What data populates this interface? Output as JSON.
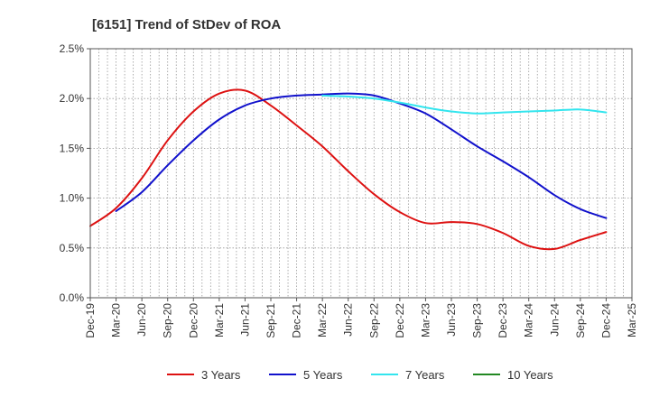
{
  "chart_data": {
    "type": "line",
    "title": "[6151]  Trend of StDev of ROA",
    "xlabel": "",
    "ylabel": "",
    "x_tick_labels": [
      "Dec-19",
      "Mar-20",
      "Jun-20",
      "Sep-20",
      "Dec-20",
      "Mar-21",
      "Jun-21",
      "Sep-21",
      "Dec-21",
      "Mar-22",
      "Jun-22",
      "Sep-22",
      "Dec-22",
      "Mar-23",
      "Jun-23",
      "Sep-23",
      "Dec-23",
      "Mar-24",
      "Jun-24",
      "Sep-24",
      "Dec-24",
      "Mar-25"
    ],
    "y_tick_labels": [
      "0.0%",
      "0.5%",
      "1.0%",
      "1.5%",
      "2.0%",
      "2.5%"
    ],
    "y_ticks": [
      0,
      0.5,
      1.0,
      1.5,
      2.0,
      2.5
    ],
    "ylim": [
      0,
      2.5
    ],
    "grid": true,
    "legend_position": "bottom",
    "series": [
      {
        "name": "3 Years",
        "color": "#dd1111",
        "x": [
          "Dec-19",
          "Mar-20",
          "Jun-20",
          "Sep-20",
          "Dec-20",
          "Mar-21",
          "Jun-21",
          "Sep-21",
          "Dec-21",
          "Mar-22",
          "Jun-22",
          "Sep-22",
          "Dec-22",
          "Mar-23",
          "Jun-23",
          "Sep-23",
          "Dec-23",
          "Mar-24",
          "Jun-24",
          "Sep-24",
          "Dec-24"
        ],
        "values": [
          0.72,
          0.9,
          1.2,
          1.58,
          1.87,
          2.05,
          2.08,
          1.93,
          1.73,
          1.52,
          1.27,
          1.04,
          0.86,
          0.75,
          0.76,
          0.74,
          0.65,
          0.52,
          0.49,
          0.58,
          0.66
        ]
      },
      {
        "name": "5 Years",
        "color": "#1111cc",
        "x": [
          "Mar-20",
          "Jun-20",
          "Sep-20",
          "Dec-20",
          "Mar-21",
          "Jun-21",
          "Sep-21",
          "Dec-21",
          "Mar-22",
          "Jun-22",
          "Sep-22",
          "Dec-22",
          "Mar-23",
          "Jun-23",
          "Sep-23",
          "Dec-23",
          "Mar-24",
          "Jun-24",
          "Sep-24",
          "Dec-24"
        ],
        "values": [
          0.87,
          1.06,
          1.33,
          1.58,
          1.79,
          1.93,
          2.0,
          2.03,
          2.04,
          2.05,
          2.03,
          1.95,
          1.85,
          1.69,
          1.52,
          1.37,
          1.21,
          1.03,
          0.89,
          0.8
        ]
      },
      {
        "name": "7 Years",
        "color": "#33e5ee",
        "x": [
          "Mar-22",
          "Jun-22",
          "Sep-22",
          "Dec-22",
          "Mar-23",
          "Jun-23",
          "Sep-23",
          "Dec-23",
          "Mar-24",
          "Jun-24",
          "Sep-24",
          "Dec-24"
        ],
        "values": [
          2.03,
          2.02,
          2.0,
          1.96,
          1.91,
          1.87,
          1.85,
          1.86,
          1.87,
          1.88,
          1.89,
          1.86
        ]
      },
      {
        "name": "10 Years",
        "color": "#228822",
        "x": [],
        "values": []
      }
    ]
  }
}
